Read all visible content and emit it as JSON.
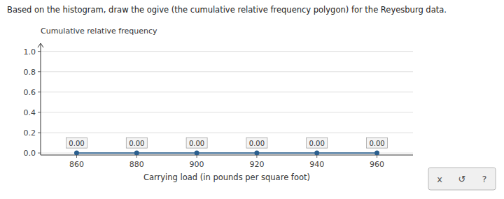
{
  "chart_data": {
    "type": "line",
    "title": "Based on the histogram, draw the ogive (the cumulative relative frequency polygon) for the Reyesburg data.",
    "y_label": "Cumulative relative frequency",
    "x_label": "Carrying load (in pounds per square foot)",
    "x": [
      860,
      880,
      900,
      920,
      940,
      960
    ],
    "values": [
      0.0,
      0.0,
      0.0,
      0.0,
      0.0,
      0.0
    ],
    "value_labels": [
      "0.00",
      "0.00",
      "0.00",
      "0.00",
      "0.00",
      "0.00"
    ],
    "data_labels": true,
    "color": "#2b5f8e",
    "marker": "circle",
    "xlim": [
      848,
      972
    ],
    "xticks": [
      860,
      880,
      900,
      920,
      940,
      960
    ],
    "ylim": [
      -0.02,
      1.08
    ],
    "yticks": [
      {
        "value": 0,
        "label": "0.0"
      },
      0.2,
      0.4,
      0.6,
      0.8,
      {
        "value": 1,
        "label": "1.0"
      }
    ],
    "grid": true,
    "annotations": [
      "x",
      "↺",
      "?"
    ]
  }
}
